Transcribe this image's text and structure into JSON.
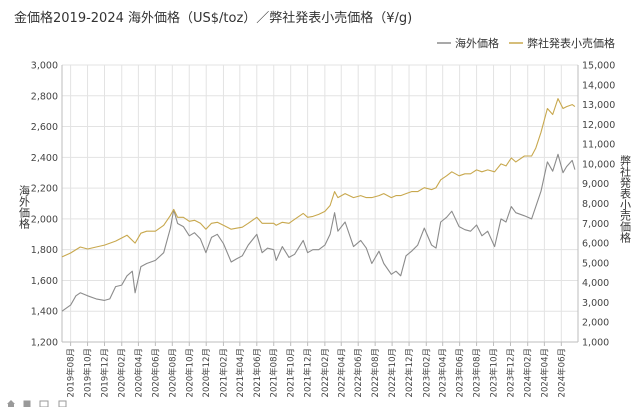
{
  "chart_data": {
    "type": "line",
    "title": "金価格2019-2024 海外価格（US$/toz）／弊社発表小売価格（¥/g)",
    "y_left": {
      "label": "海外価格",
      "range": [
        1200,
        3000
      ],
      "ticks": [
        "1,200",
        "1,400",
        "1,600",
        "1,800",
        "2,000",
        "2,200",
        "2,400",
        "2,600",
        "2,800",
        "3,000"
      ]
    },
    "y_right": {
      "label": "弊社発表小売価格",
      "range": [
        1000,
        15000
      ],
      "ticks": [
        "1,000",
        "2,000",
        "3,000",
        "4,000",
        "5,000",
        "6,000",
        "7,000",
        "8,000",
        "9,000",
        "10,000",
        "11,000",
        "12,000",
        "13,000",
        "14,000",
        "15,000"
      ]
    },
    "x_ticks": [
      "2019年08月",
      "2019年10月",
      "2019年12月",
      "2020年02月",
      "2020年04月",
      "2020年06月",
      "2020年08月",
      "2020年10月",
      "2020年12月",
      "2021年02月",
      "2021年04月",
      "2021年06月",
      "2021年08月",
      "2021年10月",
      "2021年12月",
      "2022年02月",
      "2022年04月",
      "2022年06月",
      "2022年08月",
      "2022年10月",
      "2022年12月",
      "2023年02月",
      "2023年04月",
      "2023年06月",
      "2023年08月",
      "2023年10月",
      "2023年12月",
      "2024年02月",
      "2024年04月",
      "2024年06月"
    ],
    "legend_position": "top-right",
    "grid": true,
    "series": [
      {
        "name": "海外価格",
        "axis": "left",
        "color": "#8c8c8c",
        "points": [
          [
            "2019-07-01",
            1400
          ],
          [
            "2019-08-01",
            1440
          ],
          [
            "2019-08-20",
            1500
          ],
          [
            "2019-09-05",
            1520
          ],
          [
            "2019-10-01",
            1500
          ],
          [
            "2019-11-01",
            1480
          ],
          [
            "2019-12-01",
            1470
          ],
          [
            "2019-12-20",
            1480
          ],
          [
            "2020-01-10",
            1560
          ],
          [
            "2020-02-01",
            1570
          ],
          [
            "2020-02-20",
            1630
          ],
          [
            "2020-03-10",
            1660
          ],
          [
            "2020-03-20",
            1520
          ],
          [
            "2020-04-10",
            1690
          ],
          [
            "2020-05-01",
            1710
          ],
          [
            "2020-06-01",
            1730
          ],
          [
            "2020-07-01",
            1780
          ],
          [
            "2020-07-25",
            1940
          ],
          [
            "2020-08-06",
            2060
          ],
          [
            "2020-08-20",
            1970
          ],
          [
            "2020-09-10",
            1950
          ],
          [
            "2020-10-01",
            1890
          ],
          [
            "2020-10-20",
            1910
          ],
          [
            "2020-11-10",
            1870
          ],
          [
            "2020-11-30",
            1780
          ],
          [
            "2020-12-20",
            1880
          ],
          [
            "2021-01-10",
            1900
          ],
          [
            "2021-02-01",
            1840
          ],
          [
            "2021-03-01",
            1720
          ],
          [
            "2021-03-20",
            1740
          ],
          [
            "2021-04-10",
            1760
          ],
          [
            "2021-05-01",
            1830
          ],
          [
            "2021-06-01",
            1900
          ],
          [
            "2021-06-20",
            1780
          ],
          [
            "2021-07-10",
            1810
          ],
          [
            "2021-08-01",
            1800
          ],
          [
            "2021-08-10",
            1730
          ],
          [
            "2021-09-01",
            1820
          ],
          [
            "2021-09-25",
            1750
          ],
          [
            "2021-10-15",
            1770
          ],
          [
            "2021-11-15",
            1860
          ],
          [
            "2021-12-01",
            1780
          ],
          [
            "2021-12-20",
            1800
          ],
          [
            "2022-01-10",
            1800
          ],
          [
            "2022-02-01",
            1830
          ],
          [
            "2022-02-20",
            1900
          ],
          [
            "2022-03-08",
            2040
          ],
          [
            "2022-03-20",
            1920
          ],
          [
            "2022-04-15",
            1980
          ],
          [
            "2022-05-15",
            1820
          ],
          [
            "2022-06-10",
            1860
          ],
          [
            "2022-06-30",
            1810
          ],
          [
            "2022-07-20",
            1710
          ],
          [
            "2022-08-15",
            1790
          ],
          [
            "2022-09-01",
            1710
          ],
          [
            "2022-09-28",
            1640
          ],
          [
            "2022-10-15",
            1660
          ],
          [
            "2022-11-01",
            1630
          ],
          [
            "2022-11-20",
            1760
          ],
          [
            "2022-12-10",
            1790
          ],
          [
            "2023-01-01",
            1830
          ],
          [
            "2023-01-25",
            1940
          ],
          [
            "2023-02-20",
            1830
          ],
          [
            "2023-03-08",
            1810
          ],
          [
            "2023-03-25",
            1980
          ],
          [
            "2023-04-15",
            2010
          ],
          [
            "2023-05-04",
            2050
          ],
          [
            "2023-05-30",
            1950
          ],
          [
            "2023-06-20",
            1930
          ],
          [
            "2023-07-10",
            1920
          ],
          [
            "2023-08-01",
            1960
          ],
          [
            "2023-08-20",
            1890
          ],
          [
            "2023-09-10",
            1920
          ],
          [
            "2023-10-05",
            1820
          ],
          [
            "2023-10-28",
            2000
          ],
          [
            "2023-11-15",
            1980
          ],
          [
            "2023-12-04",
            2080
          ],
          [
            "2023-12-20",
            2040
          ],
          [
            "2024-01-20",
            2020
          ],
          [
            "2024-02-15",
            2000
          ],
          [
            "2024-03-01",
            2080
          ],
          [
            "2024-03-20",
            2180
          ],
          [
            "2024-04-12",
            2370
          ],
          [
            "2024-05-01",
            2310
          ],
          [
            "2024-05-20",
            2420
          ],
          [
            "2024-06-07",
            2300
          ],
          [
            "2024-06-20",
            2340
          ],
          [
            "2024-07-10",
            2380
          ],
          [
            "2024-07-20",
            2320
          ]
        ]
      },
      {
        "name": "弊社発表小売価格",
        "axis": "right",
        "color": "#c8a84e",
        "points": [
          [
            "2019-07-01",
            5300
          ],
          [
            "2019-08-01",
            5500
          ],
          [
            "2019-09-05",
            5800
          ],
          [
            "2019-10-01",
            5700
          ],
          [
            "2019-11-01",
            5800
          ],
          [
            "2019-12-01",
            5900
          ],
          [
            "2020-01-10",
            6100
          ],
          [
            "2020-02-20",
            6400
          ],
          [
            "2020-03-20",
            6000
          ],
          [
            "2020-04-10",
            6500
          ],
          [
            "2020-05-01",
            6600
          ],
          [
            "2020-06-01",
            6600
          ],
          [
            "2020-07-01",
            6900
          ],
          [
            "2020-07-25",
            7400
          ],
          [
            "2020-08-06",
            7700
          ],
          [
            "2020-08-20",
            7300
          ],
          [
            "2020-09-10",
            7300
          ],
          [
            "2020-10-01",
            7100
          ],
          [
            "2020-10-20",
            7150
          ],
          [
            "2020-11-10",
            7000
          ],
          [
            "2020-11-30",
            6700
          ],
          [
            "2020-12-20",
            7000
          ],
          [
            "2021-01-10",
            7050
          ],
          [
            "2021-02-01",
            6900
          ],
          [
            "2021-03-01",
            6700
          ],
          [
            "2021-03-20",
            6750
          ],
          [
            "2021-04-10",
            6800
          ],
          [
            "2021-05-01",
            7000
          ],
          [
            "2021-06-01",
            7300
          ],
          [
            "2021-06-20",
            7000
          ],
          [
            "2021-07-10",
            7000
          ],
          [
            "2021-08-01",
            7000
          ],
          [
            "2021-08-10",
            6900
          ],
          [
            "2021-09-01",
            7050
          ],
          [
            "2021-09-25",
            7000
          ],
          [
            "2021-10-15",
            7200
          ],
          [
            "2021-11-15",
            7500
          ],
          [
            "2021-12-01",
            7300
          ],
          [
            "2021-12-20",
            7350
          ],
          [
            "2022-01-10",
            7450
          ],
          [
            "2022-02-01",
            7600
          ],
          [
            "2022-02-20",
            7900
          ],
          [
            "2022-03-08",
            8600
          ],
          [
            "2022-03-20",
            8300
          ],
          [
            "2022-04-15",
            8500
          ],
          [
            "2022-05-15",
            8300
          ],
          [
            "2022-06-10",
            8400
          ],
          [
            "2022-06-30",
            8300
          ],
          [
            "2022-07-20",
            8300
          ],
          [
            "2022-08-15",
            8400
          ],
          [
            "2022-09-01",
            8500
          ],
          [
            "2022-09-28",
            8300
          ],
          [
            "2022-10-15",
            8400
          ],
          [
            "2022-11-01",
            8400
          ],
          [
            "2022-11-20",
            8500
          ],
          [
            "2022-12-10",
            8600
          ],
          [
            "2023-01-01",
            8600
          ],
          [
            "2023-01-25",
            8800
          ],
          [
            "2023-02-20",
            8700
          ],
          [
            "2023-03-08",
            8800
          ],
          [
            "2023-03-25",
            9200
          ],
          [
            "2023-04-15",
            9400
          ],
          [
            "2023-05-04",
            9600
          ],
          [
            "2023-05-30",
            9400
          ],
          [
            "2023-06-20",
            9500
          ],
          [
            "2023-07-10",
            9500
          ],
          [
            "2023-08-01",
            9700
          ],
          [
            "2023-08-20",
            9600
          ],
          [
            "2023-09-10",
            9700
          ],
          [
            "2023-10-05",
            9600
          ],
          [
            "2023-10-28",
            10000
          ],
          [
            "2023-11-15",
            9900
          ],
          [
            "2023-12-04",
            10300
          ],
          [
            "2023-12-20",
            10100
          ],
          [
            "2024-01-20",
            10400
          ],
          [
            "2024-02-15",
            10400
          ],
          [
            "2024-03-01",
            10800
          ],
          [
            "2024-03-20",
            11600
          ],
          [
            "2024-04-12",
            12800
          ],
          [
            "2024-05-01",
            12500
          ],
          [
            "2024-05-20",
            13300
          ],
          [
            "2024-06-07",
            12800
          ],
          [
            "2024-06-20",
            12900
          ],
          [
            "2024-07-10",
            13000
          ],
          [
            "2024-07-20",
            12900
          ]
        ]
      }
    ]
  },
  "toolbar": {
    "icons": [
      "home-icon",
      "pan-icon",
      "zoom-icon",
      "save-icon"
    ]
  }
}
